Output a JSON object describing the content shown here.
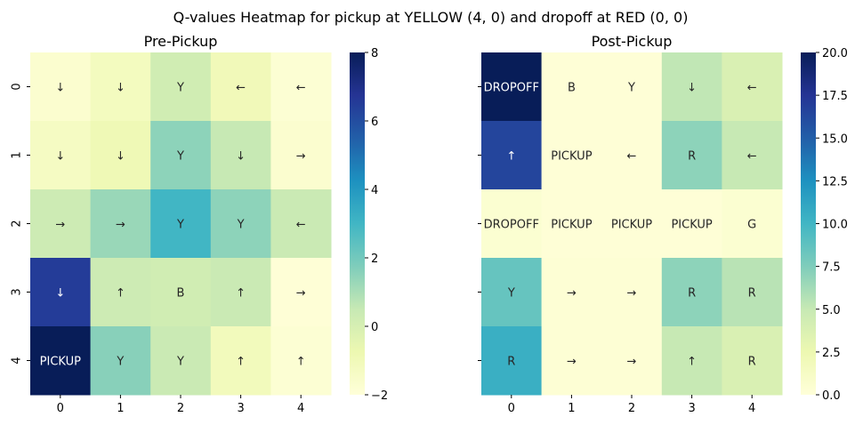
{
  "chart_data": {
    "suptitle": "Q-values Heatmap for pickup at YELLOW (4, 0) and dropoff at RED (0, 0)",
    "charts": [
      {
        "type": "heatmap",
        "title": "Pre-Pickup",
        "x_ticks": [
          "0",
          "1",
          "2",
          "3",
          "4"
        ],
        "y_ticks": [
          "0",
          "1",
          "2",
          "3",
          "4"
        ],
        "values": [
          [
            -1.7,
            -1.2,
            0.2,
            -1.0,
            -1.8
          ],
          [
            -1.3,
            -0.9,
            1.5,
            0.5,
            -1.7
          ],
          [
            0.3,
            1.3,
            3.0,
            1.5,
            0.4
          ],
          [
            6.5,
            0.3,
            0.2,
            0.4,
            -1.9
          ],
          [
            8.0,
            1.6,
            0.4,
            -1.1,
            -1.8
          ]
        ],
        "annotations": [
          [
            "↓",
            "↓",
            "Y",
            "←",
            "←"
          ],
          [
            "↓",
            "↓",
            "Y",
            "↓",
            "→"
          ],
          [
            "→",
            "→",
            "Y",
            "Y",
            "←"
          ],
          [
            "↓",
            "↑",
            "B",
            "↑",
            "→"
          ],
          [
            "PICKUP",
            "Y",
            "Y",
            "↑",
            "↑"
          ]
        ],
        "vmin": -2,
        "vmax": 8,
        "colorbar_ticks": [
          "8",
          "6",
          "4",
          "2",
          "0",
          "−2"
        ],
        "colormap": [
          "#ffffd9",
          "#edf8b1",
          "#c7e9b4",
          "#7fcdbb",
          "#41b6c4",
          "#1d91c0",
          "#225ea8",
          "#253494",
          "#081d58"
        ]
      },
      {
        "type": "heatmap",
        "title": "Post-Pickup",
        "x_ticks": [
          "0",
          "1",
          "2",
          "3",
          "4"
        ],
        "y_ticks": [
          "0",
          "1",
          "2",
          "3",
          "4"
        ],
        "values": [
          [
            20.0,
            0.2,
            0.2,
            5.2,
            3.8
          ],
          [
            16.5,
            0.2,
            0.2,
            7.0,
            5.0
          ],
          [
            0.5,
            0.2,
            0.2,
            0.2,
            0.5
          ],
          [
            8.5,
            0.3,
            0.3,
            7.0,
            5.5
          ],
          [
            10.5,
            0.3,
            0.3,
            5.0,
            3.8
          ]
        ],
        "annotations": [
          [
            "DROPOFF",
            "B",
            "Y",
            "↓",
            "←"
          ],
          [
            "↑",
            "PICKUP",
            "←",
            "R",
            "←"
          ],
          [
            "DROPOFF",
            "PICKUP",
            "PICKUP",
            "PICKUP",
            "G"
          ],
          [
            "Y",
            "→",
            "→",
            "R",
            "R"
          ],
          [
            "R",
            "→",
            "→",
            "↑",
            "R"
          ]
        ],
        "vmin": 0,
        "vmax": 20,
        "colorbar_ticks": [
          "20.0",
          "17.5",
          "15.0",
          "12.5",
          "10.0",
          "7.5",
          "5.0",
          "2.5",
          "0.0"
        ],
        "colormap": [
          "#ffffd9",
          "#edf8b1",
          "#c7e9b4",
          "#7fcdbb",
          "#41b6c4",
          "#1d91c0",
          "#225ea8",
          "#253494",
          "#081d58"
        ]
      }
    ]
  }
}
